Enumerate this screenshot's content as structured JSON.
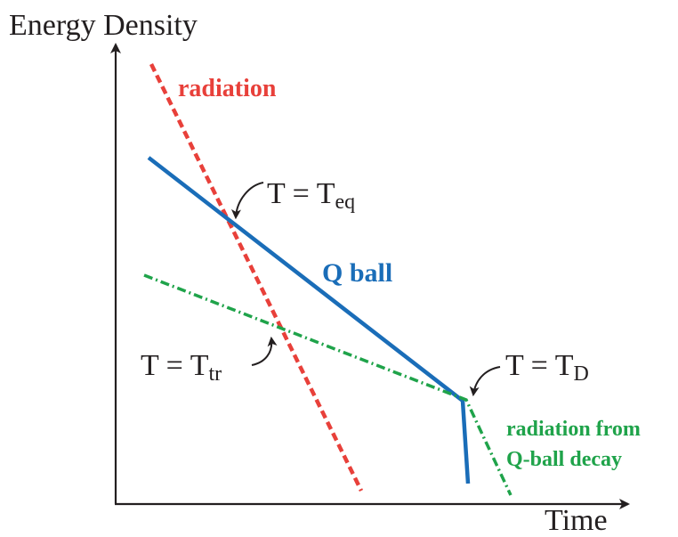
{
  "axes": {
    "y_label": "Energy Density",
    "x_label": "Time"
  },
  "lines": {
    "radiation": {
      "label": "radiation",
      "color": "#e8403a",
      "style": "dashed"
    },
    "qball": {
      "label": "Q ball",
      "color": "#1a6db8",
      "style": "solid"
    },
    "decay_radiation": {
      "label_line1": "radiation from",
      "label_line2": "Q-ball decay",
      "color": "#1fa34a",
      "style": "dash-dot"
    }
  },
  "annotations": {
    "t_eq": {
      "prefix": "T = T",
      "subscript": "eq"
    },
    "t_tr": {
      "prefix": "T = T",
      "subscript": "tr"
    },
    "t_d": {
      "prefix": "T = T",
      "subscript": "D"
    }
  },
  "colors": {
    "axis": "#231f20",
    "text": "#231f20"
  }
}
